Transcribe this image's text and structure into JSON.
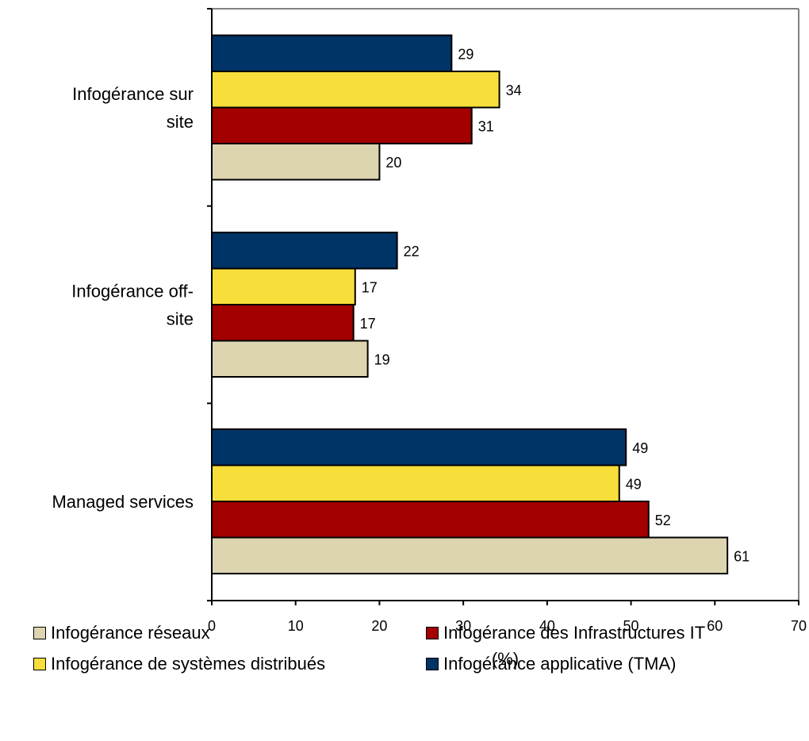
{
  "chart_data": {
    "type": "bar",
    "orientation": "horizontal",
    "categories": [
      "Infogérance sur site",
      "Infogérance off-site",
      "Managed services"
    ],
    "category_label_lines": [
      [
        "Infogérance sur",
        "site"
      ],
      [
        "Infogérance off-",
        "site"
      ],
      [
        "Managed services"
      ]
    ],
    "series": [
      {
        "name": "Infogérance applicative (TMA)",
        "color": "#003366",
        "values": [
          28.6,
          22.1,
          49.4
        ],
        "labels": [
          "29",
          "22",
          "49"
        ]
      },
      {
        "name": "Infogérance de systèmes distribués",
        "color": "#F8DE3A",
        "values": [
          34.3,
          17.1,
          48.6
        ],
        "labels": [
          "34",
          "17",
          "49"
        ]
      },
      {
        "name": "Infogérance des Infrastructures IT",
        "color": "#A30000",
        "values": [
          31.0,
          16.9,
          52.1
        ],
        "labels": [
          "31",
          "17",
          "52"
        ]
      },
      {
        "name": "Infogérance réseaux",
        "color": "#DDD4B0",
        "values": [
          20.0,
          18.6,
          61.5
        ],
        "labels": [
          "20",
          "19",
          "61"
        ]
      }
    ],
    "xlim": [
      0,
      70
    ],
    "xticks": [
      "0",
      "10",
      "20",
      "30",
      "40",
      "50",
      "60",
      "70"
    ],
    "xlabel": "(%)",
    "grid": false,
    "legend_position": "bottom",
    "legend_order": [
      "Infogérance réseaux",
      "Infogérance des Infrastructures IT",
      "Infogérance de systèmes distribués",
      "Infogérance applicative (TMA)"
    ]
  }
}
